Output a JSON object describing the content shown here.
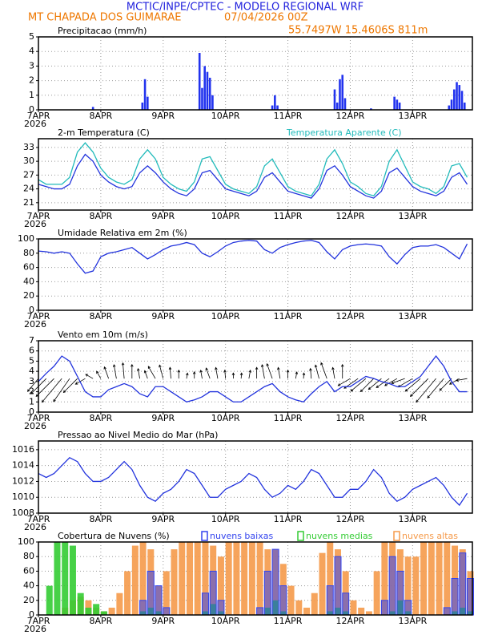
{
  "header": {
    "title": "MCTIC/INPE/CPTEC - MODELO REGIONAL WRF",
    "location": "MT CHAPADA DOS GUIMARAE",
    "datetime": "07/04/2026 00Z",
    "coords": "55.7497W 15.4606S 811m"
  },
  "chart_data": [
    {
      "type": "bar",
      "title": "Precipitacao (mm/h)",
      "color": "#2233ee",
      "x": [
        21,
        40,
        41,
        42,
        62,
        63,
        64,
        65,
        66,
        67,
        90,
        91,
        92,
        114,
        115,
        116,
        117,
        118,
        128,
        137,
        138,
        139,
        158,
        159,
        160,
        161,
        162,
        163,
        164
      ],
      "values": [
        0.2,
        0.5,
        2.1,
        0.9,
        3.9,
        1.5,
        3,
        2.6,
        2.2,
        1,
        0.3,
        1,
        0.3,
        1.4,
        0.5,
        2.1,
        2.4,
        0.8,
        0.1,
        0.9,
        0.7,
        0.5,
        0.3,
        0.7,
        1.4,
        1.9,
        1.7,
        1.3,
        0.5
      ],
      "xlim": [
        0,
        167
      ],
      "ylim": [
        0,
        5
      ],
      "yticks": [
        0,
        1,
        2,
        3,
        4,
        5
      ],
      "xticks": [
        {
          "value": 0,
          "label": "7APR"
        },
        {
          "value": 24,
          "label": "8APR"
        },
        {
          "value": 48,
          "label": "9APR"
        },
        {
          "value": 72,
          "label": "10APR"
        },
        {
          "value": 96,
          "label": "11APR"
        },
        {
          "value": 120,
          "label": "12APR"
        },
        {
          "value": 144,
          "label": "13APR"
        }
      ],
      "x_year_label": "2026",
      "grid": true
    },
    {
      "type": "line",
      "x": [
        0,
        3,
        6,
        9,
        12,
        15,
        18,
        21,
        24,
        27,
        30,
        33,
        36,
        39,
        42,
        45,
        48,
        51,
        54,
        57,
        60,
        63,
        66,
        69,
        72,
        75,
        78,
        81,
        84,
        87,
        90,
        93,
        96,
        99,
        102,
        105,
        108,
        111,
        114,
        117,
        120,
        123,
        126,
        129,
        132,
        135,
        138,
        141,
        144,
        147,
        150,
        153,
        156,
        159,
        162,
        165
      ],
      "series": [
        {
          "name": "2-m Temperatura (C)",
          "color": "#2233dd",
          "values": [
            25,
            24.5,
            24,
            24,
            25,
            29,
            31.5,
            30,
            27,
            25.5,
            24.5,
            24,
            24.5,
            27.5,
            29,
            27.5,
            25.5,
            24,
            23,
            22.5,
            24,
            27.5,
            28,
            26,
            24,
            23.5,
            23,
            22.5,
            23.5,
            26.5,
            27.5,
            25.5,
            23.5,
            23,
            22.5,
            22,
            24,
            28,
            29,
            27,
            24.5,
            23.5,
            22.5,
            22,
            23.5,
            27.5,
            28.5,
            26.5,
            24.5,
            23.5,
            23,
            22.5,
            23.5,
            26.5,
            27.5,
            25
          ]
        },
        {
          "name": "Temperatura Aparente (C)",
          "color": "#22bbbb",
          "values": [
            26,
            25,
            25,
            25,
            26.5,
            32,
            34,
            32,
            28.5,
            26.5,
            25.5,
            25,
            26,
            30.5,
            32.5,
            30.5,
            26.5,
            25,
            24,
            23.5,
            25.5,
            30.5,
            31,
            28,
            25,
            24,
            23.5,
            23,
            24.5,
            29,
            30.5,
            27.5,
            24.5,
            23.5,
            23,
            22.5,
            25,
            30.5,
            32.5,
            29.5,
            25.5,
            24.5,
            23,
            22.5,
            24.5,
            30,
            32.5,
            29,
            25.5,
            24.5,
            24,
            23,
            24.5,
            29,
            29.5,
            26.5
          ]
        }
      ],
      "xlim": [
        0,
        167
      ],
      "ylim": [
        19.4,
        34.9
      ],
      "yticks": [
        21,
        24,
        27,
        30,
        33
      ],
      "xticks": [
        {
          "value": 0,
          "label": "7APR"
        },
        {
          "value": 24,
          "label": "8APR"
        },
        {
          "value": 48,
          "label": "9APR"
        },
        {
          "value": 72,
          "label": "10APR"
        },
        {
          "value": 96,
          "label": "11APR"
        },
        {
          "value": 120,
          "label": "12APR"
        },
        {
          "value": 144,
          "label": "13APR"
        }
      ],
      "x_year_label": "2026",
      "grid": true
    },
    {
      "type": "line",
      "title": "Umidade Relativa em 2m (%)",
      "color": "#2233dd",
      "x": [
        0,
        3,
        6,
        9,
        12,
        15,
        18,
        21,
        24,
        27,
        30,
        33,
        36,
        39,
        42,
        45,
        48,
        51,
        54,
        57,
        60,
        63,
        66,
        69,
        72,
        75,
        78,
        81,
        84,
        87,
        90,
        93,
        96,
        99,
        102,
        105,
        108,
        111,
        114,
        117,
        120,
        123,
        126,
        129,
        132,
        135,
        138,
        141,
        144,
        147,
        150,
        153,
        156,
        159,
        162,
        165
      ],
      "values": [
        83,
        82,
        80,
        82,
        80,
        65,
        52,
        55,
        75,
        80,
        82,
        85,
        88,
        80,
        72,
        78,
        85,
        90,
        92,
        95,
        92,
        80,
        75,
        82,
        90,
        95,
        97,
        98,
        97,
        85,
        80,
        88,
        92,
        95,
        97,
        98,
        95,
        82,
        72,
        85,
        90,
        92,
        93,
        92,
        90,
        75,
        65,
        78,
        88,
        90,
        90,
        92,
        88,
        80,
        72,
        93
      ],
      "xlim": [
        0,
        167
      ],
      "ylim": [
        0,
        100
      ],
      "yticks": [
        0,
        20,
        40,
        60,
        80,
        100
      ],
      "xticks": [
        {
          "value": 0,
          "label": "7APR"
        },
        {
          "value": 24,
          "label": "8APR"
        },
        {
          "value": 48,
          "label": "9APR"
        },
        {
          "value": 72,
          "label": "10APR"
        },
        {
          "value": 96,
          "label": "11APR"
        },
        {
          "value": 120,
          "label": "12APR"
        },
        {
          "value": 144,
          "label": "13APR"
        }
      ],
      "x_year_label": "2026",
      "grid": true
    },
    {
      "type": "line",
      "title": "Vento em 10m (m/s)",
      "color": "#2233dd",
      "x": [
        0,
        3,
        6,
        9,
        12,
        15,
        18,
        21,
        24,
        27,
        30,
        33,
        36,
        39,
        42,
        45,
        48,
        51,
        54,
        57,
        60,
        63,
        66,
        69,
        72,
        75,
        78,
        81,
        84,
        87,
        90,
        93,
        96,
        99,
        102,
        105,
        108,
        111,
        114,
        117,
        120,
        123,
        126,
        129,
        132,
        135,
        138,
        141,
        144,
        147,
        150,
        153,
        156,
        159,
        162,
        165
      ],
      "values": [
        3,
        3.8,
        4.5,
        5.5,
        5,
        3.5,
        2,
        1.5,
        1.5,
        2.2,
        2.5,
        2.8,
        2.5,
        1.8,
        1.5,
        2.5,
        2.5,
        2,
        1.5,
        1,
        1.2,
        1.5,
        2,
        2,
        1.5,
        1,
        1,
        1.5,
        2,
        2.5,
        2.8,
        2,
        1.5,
        1.2,
        1,
        1.8,
        2.5,
        3,
        2,
        2.5,
        2.5,
        3,
        3.5,
        3.3,
        3,
        2.8,
        2.5,
        2.5,
        3,
        3.5,
        4.5,
        5.5,
        4.5,
        3,
        2,
        2
      ],
      "direction": [
        40,
        45,
        45,
        40,
        35,
        45,
        60,
        120,
        150,
        160,
        170,
        175,
        180,
        170,
        160,
        150,
        165,
        175,
        180,
        190,
        180,
        170,
        160,
        170,
        175,
        180,
        185,
        190,
        180,
        170,
        160,
        170,
        180,
        190,
        185,
        175,
        165,
        160,
        170,
        180,
        60,
        55,
        50,
        45,
        50,
        55,
        60,
        70,
        60,
        50,
        45,
        40,
        40,
        45,
        60,
        80
      ],
      "xlim": [
        0,
        167
      ],
      "ylim": [
        0,
        7
      ],
      "yticks": [
        0,
        1,
        2,
        3,
        4,
        5,
        6,
        7
      ],
      "xticks": [
        {
          "value": 0,
          "label": "7APR"
        },
        {
          "value": 24,
          "label": "8APR"
        },
        {
          "value": 48,
          "label": "9APR"
        },
        {
          "value": 72,
          "label": "10APR"
        },
        {
          "value": 96,
          "label": "11APR"
        },
        {
          "value": 120,
          "label": "12APR"
        },
        {
          "value": 144,
          "label": "13APR"
        }
      ],
      "x_year_label": "2026",
      "grid": true
    },
    {
      "type": "line",
      "title": "Pressao ao Nivel Medio do Mar (hPa)",
      "color": "#2233dd",
      "x": [
        0,
        3,
        6,
        9,
        12,
        15,
        18,
        21,
        24,
        27,
        30,
        33,
        36,
        39,
        42,
        45,
        48,
        51,
        54,
        57,
        60,
        63,
        66,
        69,
        72,
        75,
        78,
        81,
        84,
        87,
        90,
        93,
        96,
        99,
        102,
        105,
        108,
        111,
        114,
        117,
        120,
        123,
        126,
        129,
        132,
        135,
        138,
        141,
        144,
        147,
        150,
        153,
        156,
        159,
        162,
        165
      ],
      "values": [
        1013,
        1012.5,
        1013,
        1014,
        1015,
        1014.5,
        1013,
        1012,
        1012,
        1012.5,
        1013.5,
        1014.5,
        1013.5,
        1011.5,
        1010,
        1009.5,
        1010.5,
        1011,
        1012,
        1013.5,
        1013,
        1011.5,
        1010,
        1010,
        1011,
        1011.5,
        1012,
        1013,
        1012.5,
        1011,
        1010,
        1010.5,
        1011.5,
        1011,
        1012,
        1013.5,
        1013,
        1011.5,
        1010,
        1010,
        1011,
        1011,
        1012,
        1013.5,
        1012.5,
        1010.5,
        1009.5,
        1010,
        1011,
        1011.5,
        1012,
        1012.5,
        1011.5,
        1010,
        1009,
        1010.5
      ],
      "xlim": [
        0,
        167
      ],
      "ylim": [
        1008,
        1017.1
      ],
      "yticks": [
        1008,
        1010,
        1012,
        1014,
        1016
      ],
      "xticks": [
        {
          "value": 0,
          "label": "7APR"
        },
        {
          "value": 24,
          "label": "8APR"
        },
        {
          "value": 48,
          "label": "9APR"
        },
        {
          "value": 72,
          "label": "10APR"
        },
        {
          "value": 96,
          "label": "11APR"
        },
        {
          "value": 120,
          "label": "12APR"
        },
        {
          "value": 144,
          "label": "13APR"
        }
      ],
      "x_year_label": "2026",
      "grid": true
    },
    {
      "type": "bar",
      "title": "Cobertura de Nuvens (%)",
      "x": [
        0,
        3,
        6,
        9,
        12,
        15,
        18,
        21,
        24,
        27,
        30,
        33,
        36,
        39,
        42,
        45,
        48,
        51,
        54,
        57,
        60,
        63,
        66,
        69,
        72,
        75,
        78,
        81,
        84,
        87,
        90,
        93,
        96,
        99,
        102,
        105,
        108,
        111,
        114,
        117,
        120,
        123,
        126,
        129,
        132,
        135,
        138,
        141,
        144,
        147,
        150,
        153,
        156,
        159,
        162,
        165
      ],
      "series": [
        {
          "name": "nuvens baixas",
          "color": "#3344ee",
          "values": [
            0,
            0,
            0,
            0,
            0,
            0,
            0,
            0,
            0,
            0,
            0,
            0,
            0,
            20,
            60,
            40,
            10,
            0,
            0,
            0,
            0,
            30,
            60,
            20,
            0,
            0,
            0,
            0,
            10,
            60,
            90,
            40,
            0,
            0,
            0,
            0,
            0,
            40,
            80,
            30,
            0,
            0,
            0,
            0,
            20,
            80,
            60,
            20,
            0,
            0,
            0,
            0,
            10,
            50,
            85,
            50
          ]
        },
        {
          "name": "nuvens medias",
          "color": "#33cc33",
          "values": [
            0,
            40,
            100,
            100,
            95,
            30,
            10,
            15,
            5,
            0,
            0,
            0,
            0,
            5,
            10,
            5,
            0,
            0,
            0,
            0,
            0,
            5,
            15,
            5,
            0,
            0,
            0,
            0,
            0,
            10,
            20,
            5,
            0,
            0,
            0,
            0,
            0,
            5,
            10,
            5,
            0,
            0,
            0,
            0,
            0,
            5,
            20,
            5,
            0,
            0,
            0,
            0,
            0,
            5,
            10,
            5
          ]
        },
        {
          "name": "nuvens altas",
          "color": "#f59a4a",
          "values": [
            0,
            0,
            0,
            10,
            20,
            25,
            20,
            10,
            5,
            10,
            30,
            60,
            95,
            100,
            90,
            40,
            60,
            90,
            100,
            100,
            100,
            100,
            95,
            80,
            100,
            100,
            100,
            100,
            100,
            90,
            90,
            70,
            40,
            20,
            10,
            30,
            85,
            100,
            90,
            60,
            20,
            10,
            5,
            60,
            100,
            100,
            90,
            80,
            80,
            100,
            100,
            100,
            100,
            95,
            90,
            60
          ]
        }
      ],
      "xlim": [
        0,
        167
      ],
      "ylim": [
        0,
        100
      ],
      "yticks": [
        0,
        20,
        40,
        60,
        80,
        100
      ],
      "xticks": [
        {
          "value": 0,
          "label": "7APR"
        },
        {
          "value": 24,
          "label": "8APR"
        },
        {
          "value": 48,
          "label": "9APR"
        },
        {
          "value": 72,
          "label": "10APR"
        },
        {
          "value": 96,
          "label": "11APR"
        },
        {
          "value": 120,
          "label": "12APR"
        },
        {
          "value": 144,
          "label": "13APR"
        }
      ],
      "x_year_label": "2026",
      "grid": true
    }
  ]
}
